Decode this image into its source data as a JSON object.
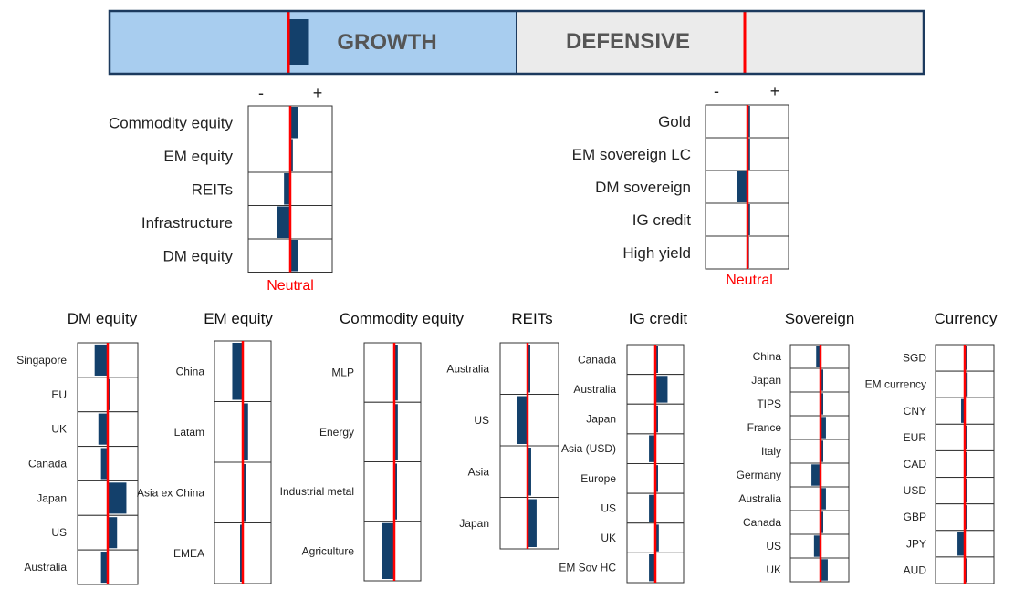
{
  "colors": {
    "bar": "#13406b",
    "neutral": "#ff0000",
    "growth_bg": "#a8cdef",
    "defensive_bg": "#ebebeb",
    "grid": "#333333",
    "banner_border": "#1c3a5e"
  },
  "banner": {
    "growth_label": "GROWTH",
    "defensive_label": "DEFENSIVE",
    "growth_value": 0.15
  },
  "top_panels": [
    {
      "id": "growth",
      "minus_label": "-",
      "plus_label": "+",
      "neutral_label": "Neutral",
      "rows": [
        {
          "label": "Commodity equity",
          "value": 0.15
        },
        {
          "label": "EM equity",
          "value": 0.05
        },
        {
          "label": "REITs",
          "value": -0.12
        },
        {
          "label": "Infrastructure",
          "value": -0.26
        },
        {
          "label": "DM equity",
          "value": 0.15
        }
      ]
    },
    {
      "id": "defensive",
      "minus_label": "-",
      "plus_label": "+",
      "neutral_label": "Neutral",
      "rows": [
        {
          "label": "Gold",
          "value": 0.05
        },
        {
          "label": "EM sovereign LC",
          "value": 0.05
        },
        {
          "label": "DM sovereign",
          "value": -0.2
        },
        {
          "label": "IG credit",
          "value": 0.05
        },
        {
          "label": "High yield",
          "value": 0.03
        }
      ]
    }
  ],
  "chart_data": [
    {
      "type": "bar",
      "title": "DM equity",
      "categories": [
        "Singapore",
        "EU",
        "UK",
        "Canada",
        "Japan",
        "US",
        "Australia"
      ],
      "values": [
        -0.35,
        0.05,
        -0.25,
        -0.18,
        0.5,
        0.25,
        -0.18
      ]
    },
    {
      "type": "bar",
      "title": "EM equity",
      "categories": [
        "China",
        "Latam",
        "Asia ex China",
        "EMEA"
      ],
      "values": [
        -0.3,
        0.15,
        0.1,
        -0.03
      ]
    },
    {
      "type": "bar",
      "title": "Commodity equity",
      "categories": [
        "MLP",
        "Energy",
        "Industrial metal",
        "Agriculture"
      ],
      "values": [
        0.1,
        0.1,
        0.05,
        -0.35
      ]
    },
    {
      "type": "bar",
      "title": "REITs",
      "categories": [
        "Australia",
        "US",
        "Asia",
        "Japan"
      ],
      "values": [
        0.02,
        -0.3,
        0.1,
        0.25
      ]
    },
    {
      "type": "bar",
      "title": "IG credit",
      "categories": [
        "Canada",
        "Australia",
        "Japan",
        "Asia (USD)",
        "Europe",
        "US",
        "UK",
        "EM Sov HC"
      ],
      "values": [
        0.05,
        0.35,
        0.02,
        -0.18,
        0.02,
        -0.18,
        0.1,
        -0.18
      ]
    },
    {
      "type": "bar",
      "title": "Sovereign",
      "categories": [
        "China",
        "Japan",
        "TIPS",
        "France",
        "Italy",
        "Germany",
        "Australia",
        "Canada",
        "US",
        "UK"
      ],
      "values": [
        -0.12,
        0.02,
        0.02,
        0.15,
        0.02,
        -0.25,
        0.15,
        0.02,
        -0.18,
        0.2
      ]
    },
    {
      "type": "bar",
      "title": "Currency",
      "categories": [
        "SGD",
        "EM currency",
        "CNY",
        "EUR",
        "CAD",
        "USD",
        "GBP",
        "JPY",
        "AUD"
      ],
      "values": [
        0.05,
        0.08,
        -0.1,
        0.02,
        0.02,
        0.05,
        0.02,
        -0.2,
        0.02
      ]
    }
  ]
}
